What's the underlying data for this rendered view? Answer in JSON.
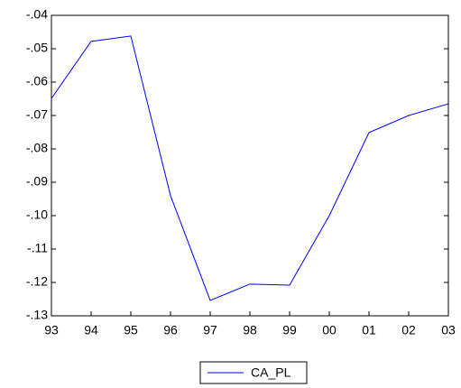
{
  "chart_data": {
    "type": "line",
    "categories": [
      "93",
      "94",
      "95",
      "96",
      "97",
      "98",
      "99",
      "00",
      "01",
      "02",
      "03"
    ],
    "series": [
      {
        "name": "CA_PL",
        "color": "#0000ff",
        "values": [
          -0.0649,
          -0.0478,
          -0.0462,
          -0.094,
          -0.1254,
          -0.1205,
          -0.1208,
          -0.1,
          -0.0751,
          -0.07,
          -0.0665
        ]
      }
    ],
    "ylim": [
      -0.13,
      -0.04
    ],
    "yticks": [
      {
        "value": -0.04,
        "label": "-.04"
      },
      {
        "value": -0.05,
        "label": "-.05"
      },
      {
        "value": -0.06,
        "label": "-.06"
      },
      {
        "value": -0.07,
        "label": "-.07"
      },
      {
        "value": -0.08,
        "label": "-.08"
      },
      {
        "value": -0.09,
        "label": "-.09"
      },
      {
        "value": -0.1,
        "label": "-.10"
      },
      {
        "value": -0.11,
        "label": "-.11"
      },
      {
        "value": -0.12,
        "label": "-.12"
      },
      {
        "value": -0.13,
        "label": "-.13"
      }
    ],
    "legend": "bottom"
  }
}
